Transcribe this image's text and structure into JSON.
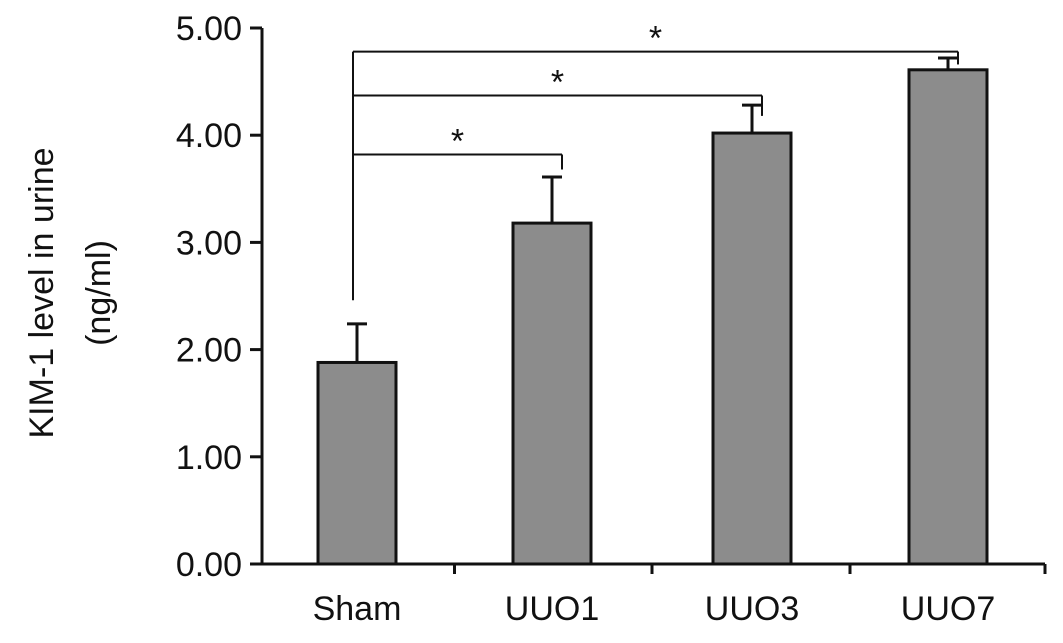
{
  "chart_data": {
    "type": "bar",
    "categories": [
      "Sham",
      "UUO1",
      "UUO3",
      "UUO7"
    ],
    "values": [
      1.88,
      3.18,
      4.02,
      4.61
    ],
    "errors": [
      0.36,
      0.43,
      0.26,
      0.11
    ],
    "ylabel_line1": "KIM-1 level in urine",
    "ylabel_line2": "(ng/ml)",
    "ylim": [
      0,
      5
    ],
    "yticks": [
      "0.00",
      "1.00",
      "2.00",
      "3.00",
      "4.00",
      "5.00"
    ],
    "grid": false,
    "bar_color": "#8c8c8c",
    "significance": [
      {
        "from": "Sham",
        "to": "UUO1",
        "label": "*"
      },
      {
        "from": "Sham",
        "to": "UUO3",
        "label": "*"
      },
      {
        "from": "Sham",
        "to": "UUO7",
        "label": "*"
      }
    ]
  }
}
